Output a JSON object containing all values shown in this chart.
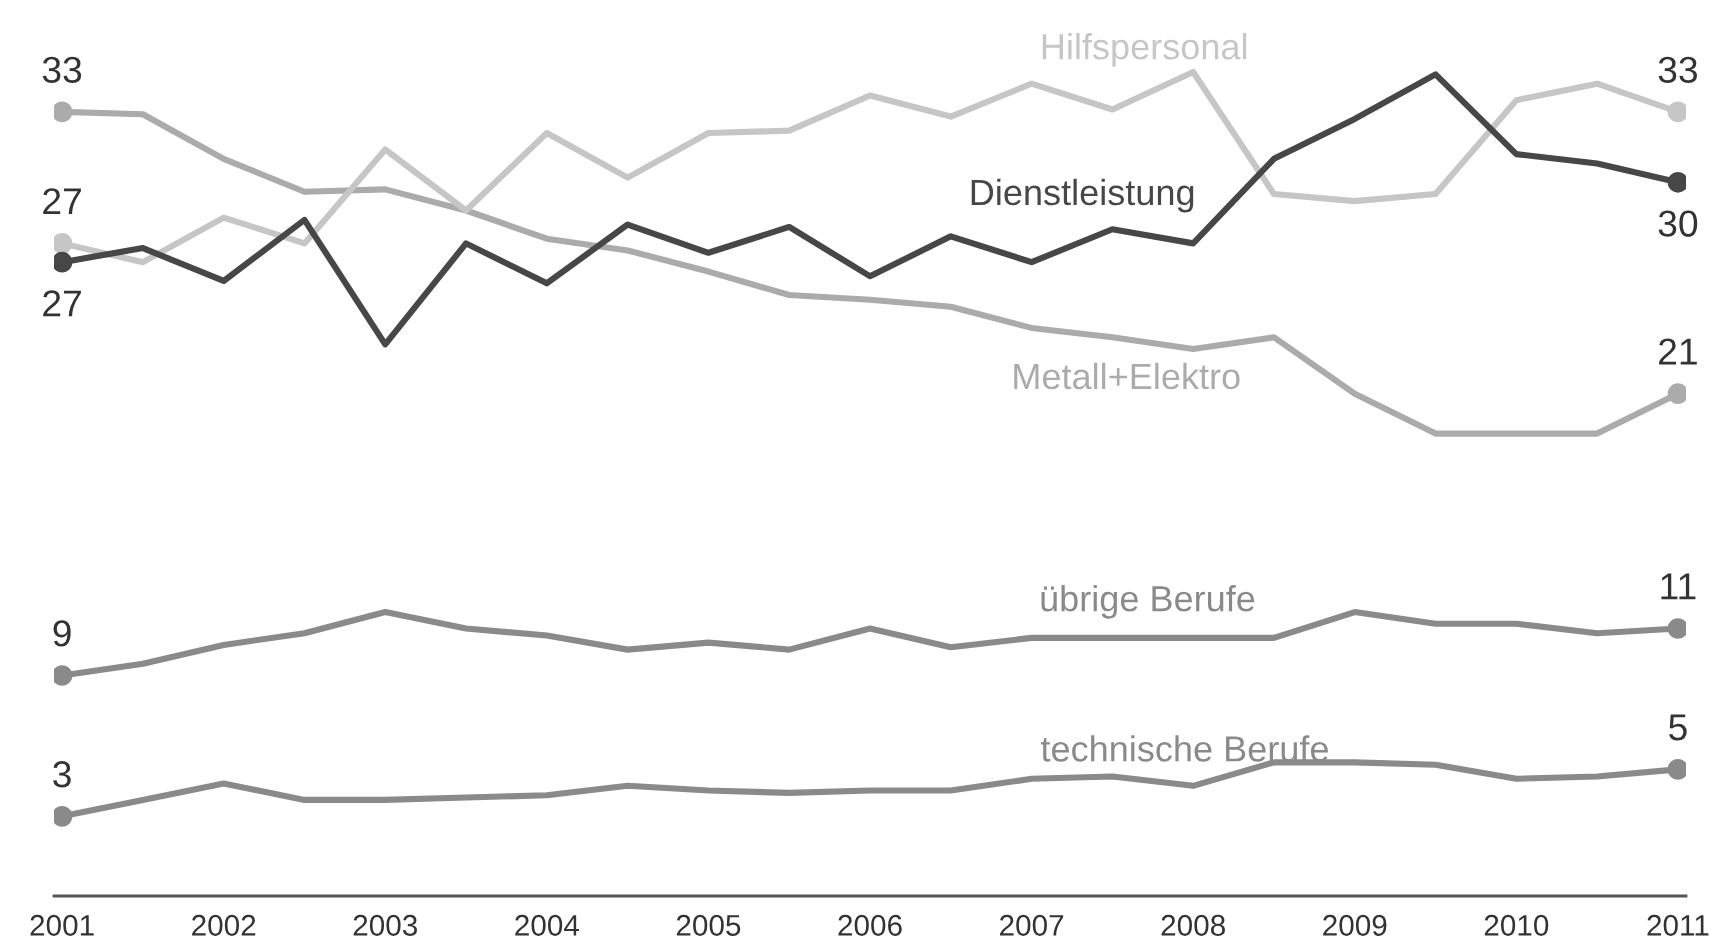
{
  "chart_data": {
    "type": "line",
    "x": [
      2001,
      2001.5,
      2002,
      2002.5,
      2003,
      2003.5,
      2004,
      2004.5,
      2005,
      2005.5,
      2006,
      2006.5,
      2007,
      2007.5,
      2008,
      2008.5,
      2009,
      2009.5,
      2010,
      2010.5,
      2011
    ],
    "xlim": [
      2000.95,
      2011.05
    ],
    "xticks": [
      2001,
      2002,
      2003,
      2004,
      2005,
      2006,
      2007,
      2008,
      2009,
      2010,
      2011
    ],
    "tick_labels": "x",
    "line_style": "solid",
    "series": [
      {
        "name": "Metall+Elektro",
        "color": "#ababab",
        "values": [
          33,
          32.9,
          31.0,
          29.6,
          29.7,
          28.8,
          27.6,
          27.1,
          26.2,
          25.2,
          25.0,
          24.7,
          23.8,
          23.4,
          22.9,
          23.4,
          21.0,
          19.3,
          19.3,
          19.3,
          21
        ],
        "value_labels": [
          "33",
          null,
          null,
          null,
          null,
          null,
          null,
          null,
          null,
          null,
          null,
          null,
          null,
          null,
          null,
          null,
          null,
          null,
          null,
          null,
          "21"
        ]
      },
      {
        "name": "Hilfspersonal",
        "color": "#c6c6c6",
        "values": [
          27.4,
          26.6,
          28.5,
          27.4,
          31.4,
          28.8,
          32.1,
          30.2,
          32.1,
          32.2,
          33.7,
          32.8,
          34.2,
          33.1,
          34.7,
          29.5,
          29.2,
          29.5,
          33.5,
          34.2,
          33
        ],
        "value_labels": [
          "27",
          null,
          null,
          null,
          null,
          null,
          null,
          null,
          null,
          null,
          null,
          null,
          null,
          null,
          null,
          null,
          null,
          null,
          null,
          null,
          "33"
        ]
      },
      {
        "name": "übrige Berufe",
        "color": "#8a8a8a",
        "values": [
          9,
          9.5,
          10.3,
          10.8,
          11.7,
          11.0,
          10.7,
          10.1,
          10.4,
          10.1,
          11.0,
          10.2,
          10.6,
          10.6,
          10.6,
          10.6,
          11.7,
          11.2,
          11.2,
          10.8,
          11
        ],
        "value_labels": [
          "9",
          null,
          null,
          null,
          null,
          null,
          null,
          null,
          null,
          null,
          null,
          null,
          null,
          null,
          null,
          null,
          null,
          null,
          null,
          null,
          "11"
        ]
      },
      {
        "name": "technische Berufe",
        "color": "#8a8a8a",
        "values": [
          3,
          3.7,
          4.4,
          3.7,
          3.7,
          3.8,
          3.9,
          4.3,
          4.1,
          4.0,
          4.1,
          4.1,
          4.6,
          4.7,
          4.3,
          5.3,
          5.3,
          5.2,
          4.6,
          4.7,
          5
        ],
        "value_labels": [
          "3",
          null,
          null,
          null,
          null,
          null,
          null,
          null,
          null,
          null,
          null,
          null,
          null,
          null,
          null,
          null,
          null,
          null,
          null,
          null,
          "5"
        ]
      },
      {
        "name": "Dienstleistung",
        "color": "#474747",
        "values": [
          26.6,
          27.2,
          25.8,
          28.4,
          23.1,
          27.4,
          25.7,
          28.2,
          27.0,
          28.1,
          26.0,
          27.7,
          26.6,
          28.0,
          27.4,
          31.0,
          32.7,
          34.6,
          31.2,
          30.8,
          30
        ],
        "value_labels": [
          "27",
          null,
          null,
          null,
          null,
          null,
          null,
          null,
          null,
          null,
          null,
          null,
          null,
          null,
          null,
          null,
          null,
          null,
          null,
          null,
          "30"
        ]
      }
    ]
  }
}
